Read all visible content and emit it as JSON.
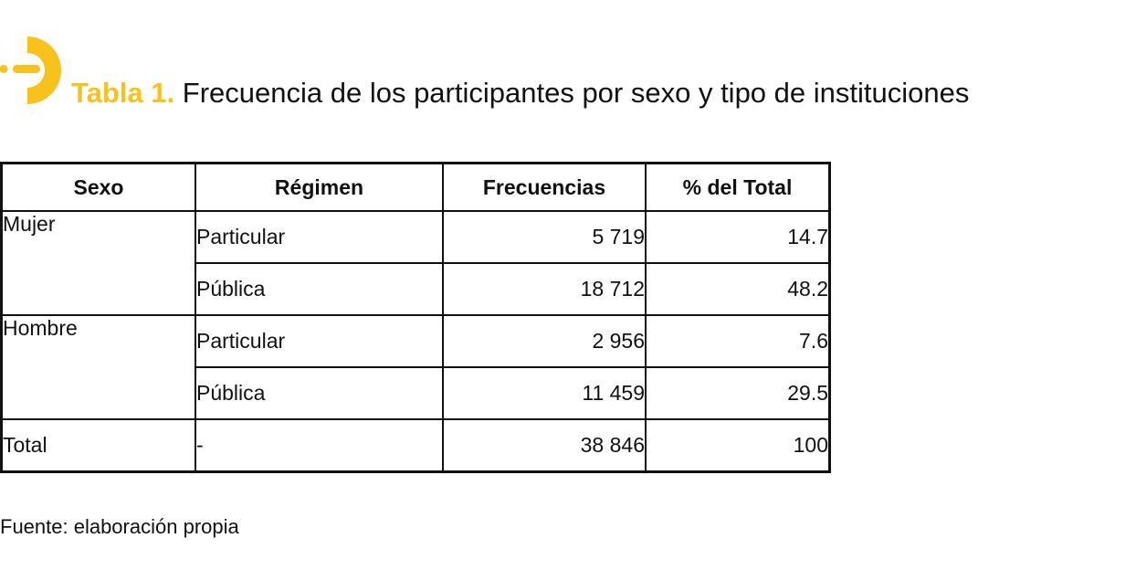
{
  "colors": {
    "accent": "#f7c21b",
    "text": "#111111"
  },
  "title": {
    "lead": "Tabla 1.",
    "text": "Frecuencia de los participantes por sexo y tipo de instituciones"
  },
  "table": {
    "headers": [
      "Sexo",
      "Régimen",
      "Frecuencias",
      "% del Total"
    ],
    "groups": [
      {
        "sexo": "Mujer",
        "rows": [
          {
            "regimen": "Particular",
            "frecuencia": "5 719",
            "porcentaje": "14.7"
          },
          {
            "regimen": "Pública",
            "frecuencia": "18 712",
            "porcentaje": "48.2"
          }
        ]
      },
      {
        "sexo": "Hombre",
        "rows": [
          {
            "regimen": "Particular",
            "frecuencia": "2 956",
            "porcentaje": "7.6"
          },
          {
            "regimen": "Pública",
            "frecuencia": "11 459",
            "porcentaje": "29.5"
          }
        ]
      }
    ],
    "total": {
      "sexo": "Total",
      "regimen": "-",
      "frecuencia": "38 846",
      "porcentaje": "100"
    }
  },
  "source": "Fuente: elaboración propia"
}
